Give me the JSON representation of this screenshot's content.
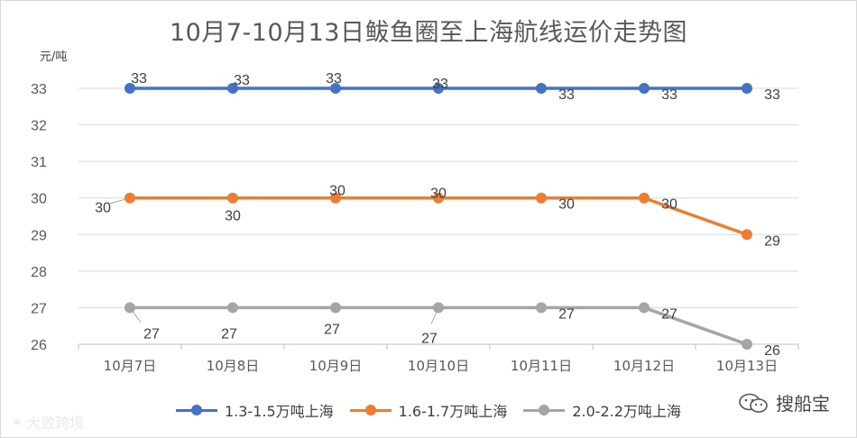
{
  "chart_data": {
    "type": "line",
    "title": "10月7-10月13日鲅鱼圈至上海航线运价走势图",
    "ylabel": "元/吨",
    "categories": [
      "10月7日",
      "10月8日",
      "10月9日",
      "10月10日",
      "10月11日",
      "10月12日",
      "10月13日"
    ],
    "ylim": [
      26,
      33
    ],
    "yticks": [
      26,
      27,
      28,
      29,
      30,
      31,
      32,
      33
    ],
    "grid": true,
    "legend_position": "bottom",
    "series": [
      {
        "name": "1.3-1.5万吨上海",
        "values": [
          33,
          33,
          33,
          33,
          33,
          33,
          33
        ],
        "color": "#4472c4"
      },
      {
        "name": "1.6-1.7万吨上海",
        "values": [
          30,
          30,
          30,
          30,
          30,
          30,
          29
        ],
        "color": "#ed7d31"
      },
      {
        "name": "2.0-2.2万吨上海",
        "values": [
          27,
          27,
          27,
          27,
          27,
          27,
          26
        ],
        "color": "#a5a5a5"
      }
    ]
  },
  "watermarks": {
    "left_text": "大败跨境",
    "left_icon": "weibo-icon",
    "right_text": "搜船宝",
    "right_icon": "wechat-icon"
  }
}
